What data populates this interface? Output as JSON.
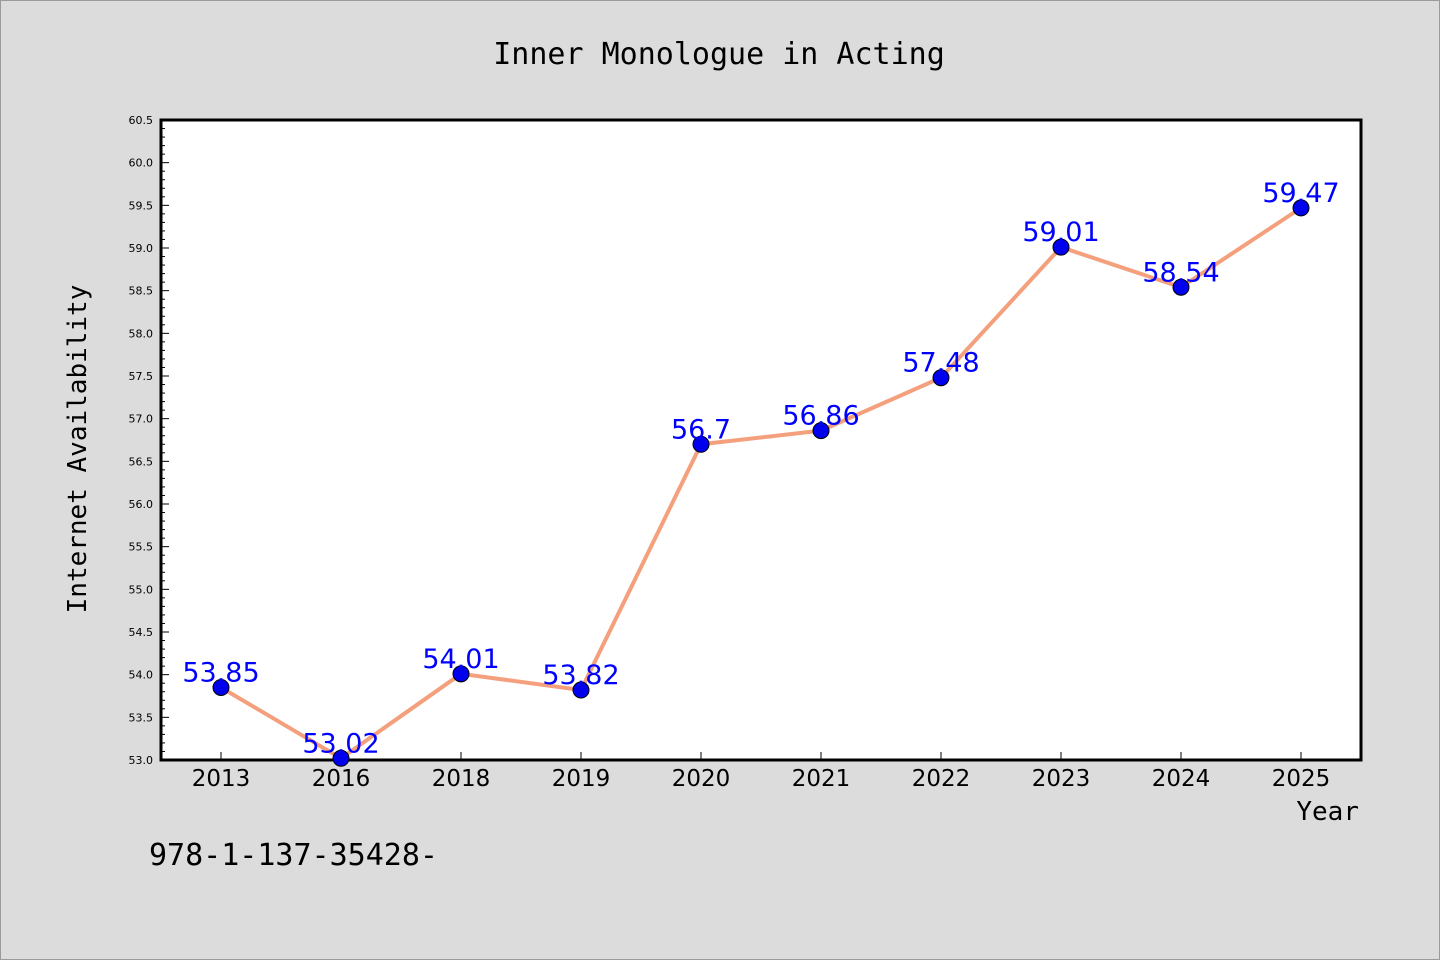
{
  "chart_data": {
    "type": "line",
    "title": "Inner Monologue in Acting",
    "xlabel": "Year",
    "ylabel": "Internet Availability",
    "x": [
      "2013",
      "2016",
      "2018",
      "2019",
      "2020",
      "2021",
      "2022",
      "2023",
      "2024",
      "2025"
    ],
    "series": [
      {
        "values": [
          53.85,
          53.02,
          54.01,
          53.82,
          56.7,
          56.86,
          57.48,
          59.01,
          58.54,
          59.47
        ],
        "data_labels": [
          "53.85",
          "53.02",
          "54.01",
          "53.82",
          "56.7",
          "56.86",
          "57.48",
          "59.01",
          "58.54",
          "59.47"
        ]
      }
    ],
    "ylim": [
      53.0,
      60.5
    ],
    "y_ticks": [
      "53.0",
      "53.5",
      "54.0",
      "54.5",
      "55.0",
      "55.5",
      "56.0",
      "56.5",
      "57.0",
      "57.5",
      "58.0",
      "58.5",
      "59.0",
      "59.5",
      "60.0",
      "60.5"
    ],
    "grid": false,
    "line_color": "#f4a07d",
    "marker_color": "#0000ee",
    "label_color": "#0000ff",
    "annotation": "978-1-137-35428-"
  }
}
